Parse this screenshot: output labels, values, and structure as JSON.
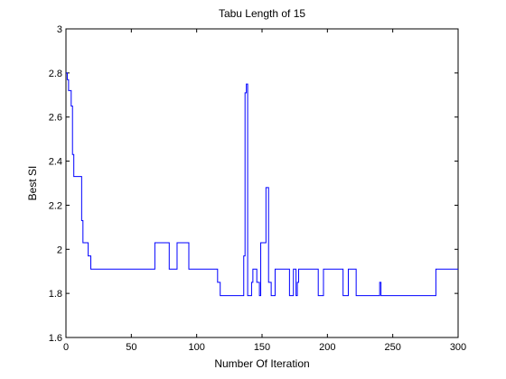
{
  "chart_data": {
    "type": "line",
    "title": "Tabu Length of 15",
    "xlabel": "Number Of Iteration",
    "ylabel": "Best SI",
    "xlim": [
      0,
      300
    ],
    "ylim": [
      1.6,
      3
    ],
    "xticks": [
      0,
      50,
      100,
      150,
      200,
      250,
      300
    ],
    "yticks": [
      1.6,
      1.8,
      2,
      2.2,
      2.4,
      2.6,
      2.8,
      3
    ],
    "ytick_labels": [
      "1.6",
      "1.8",
      "2",
      "2.2",
      "2.4",
      "2.6",
      "2.8",
      "3"
    ],
    "grid": false,
    "line_color": "#0000ff",
    "series": [
      {
        "x": [
          0,
          1,
          1,
          2,
          2,
          4,
          4,
          5,
          5,
          6,
          6,
          12,
          12,
          13,
          13,
          17,
          17,
          19,
          19,
          68,
          68,
          79,
          79,
          85,
          85,
          88,
          88,
          94,
          94,
          116,
          116,
          118,
          118,
          136,
          136,
          137,
          137,
          138,
          138,
          139,
          139,
          142,
          142,
          143,
          143,
          146,
          146,
          148,
          148,
          149,
          149,
          153,
          153,
          155,
          155,
          157,
          157,
          160,
          160,
          163,
          163,
          171,
          171,
          174,
          174,
          176,
          176,
          177,
          177,
          178,
          178,
          180,
          180,
          193,
          193,
          197,
          197,
          212,
          212,
          216,
          216,
          222,
          222,
          240,
          240,
          241,
          241,
          283,
          283,
          300
        ],
        "y": [
          2.8,
          2.8,
          2.77,
          2.77,
          2.72,
          2.72,
          2.65,
          2.65,
          2.43,
          2.43,
          2.33,
          2.33,
          2.13,
          2.13,
          2.03,
          2.03,
          1.97,
          1.97,
          1.91,
          1.91,
          2.03,
          2.03,
          1.91,
          1.91,
          2.03,
          2.03,
          2.03,
          2.03,
          1.91,
          1.91,
          1.85,
          1.85,
          1.79,
          1.79,
          1.97,
          1.97,
          2.71,
          2.71,
          2.75,
          2.75,
          1.79,
          1.79,
          1.85,
          1.85,
          1.91,
          1.91,
          1.85,
          1.85,
          1.79,
          1.79,
          2.03,
          2.03,
          2.28,
          2.28,
          1.85,
          1.85,
          1.79,
          1.79,
          1.91,
          1.91,
          1.91,
          1.91,
          1.79,
          1.79,
          1.91,
          1.91,
          1.79,
          1.79,
          1.85,
          1.85,
          1.91,
          1.91,
          1.91,
          1.91,
          1.79,
          1.79,
          1.91,
          1.91,
          1.79,
          1.79,
          1.91,
          1.91,
          1.79,
          1.79,
          1.85,
          1.85,
          1.79,
          1.79,
          1.91,
          1.91
        ]
      }
    ]
  }
}
